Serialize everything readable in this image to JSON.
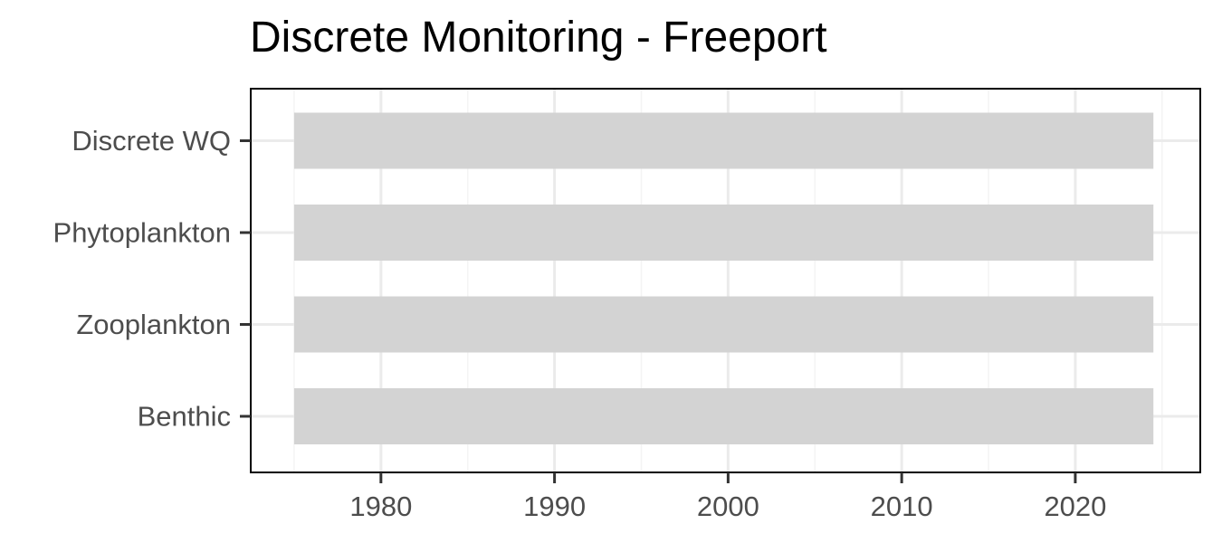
{
  "chart_data": {
    "type": "bar",
    "orientation": "horizontal",
    "title": "Discrete Monitoring - Freeport",
    "xlabel": "",
    "ylabel": "",
    "categories": [
      "Discrete WQ",
      "Phytoplankton",
      "Zooplankton",
      "Benthic"
    ],
    "series": [
      {
        "ranges": [
          {
            "start": 1975,
            "end": 2024.5
          },
          {
            "start": 1975,
            "end": 2024.5
          },
          {
            "start": 1975,
            "end": 2024.5
          },
          {
            "start": 1975,
            "end": 2024.5
          }
        ]
      }
    ],
    "xlim": [
      1972.5,
      2027.2
    ],
    "xticks": [
      1980,
      1990,
      2000,
      2010,
      2020
    ],
    "grid": true,
    "legend": "none",
    "colors": {
      "bar": "#d3d3d3",
      "grid_major": "#ebebeb",
      "grid_minor": "#f4f4f4",
      "panel_border": "#000000",
      "axis_text": "#4d4d4d",
      "tick_mark": "#333333"
    }
  }
}
